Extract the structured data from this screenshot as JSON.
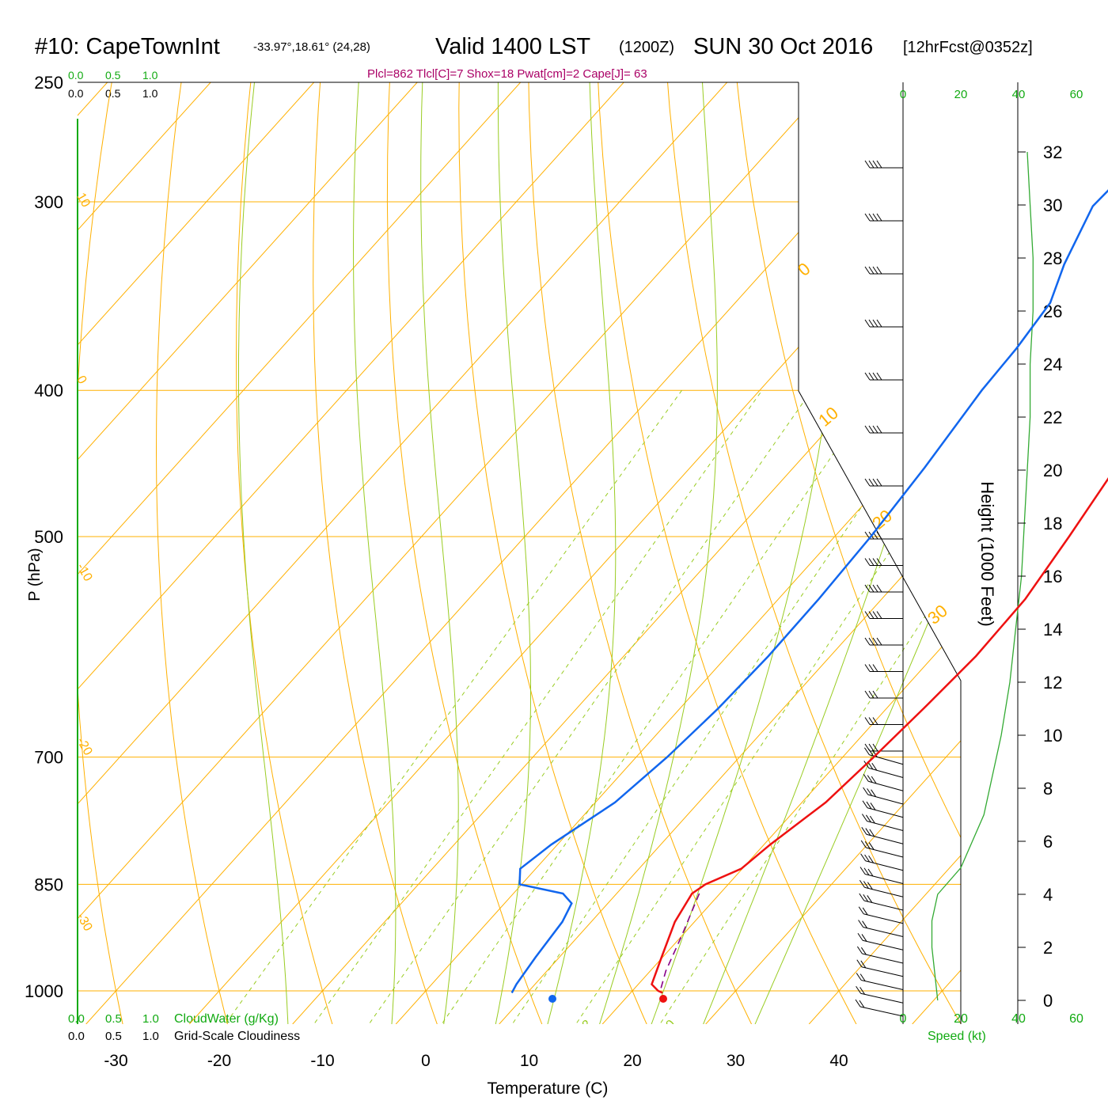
{
  "header": {
    "station": "#10: CapeTownInt",
    "coords": "-33.97°,18.61° (24,28)",
    "valid": "Valid 1400 LST",
    "zulu": "(1200Z)",
    "date": "SUN 30 Oct 2016",
    "forecast": "[12hrFcst@0352z]",
    "indices": "Plcl=862 Tlcl[C]=7 Shox=18 Pwat[cm]=2 Cape[J]= 63"
  },
  "colors": {
    "temperature": "#ee1111",
    "dewpoint": "#1166ee",
    "parcel": "#880088",
    "isobar_isotherm": "#ffb000",
    "adiabat": "#99cc22",
    "green_text": "#11aa11",
    "windspeed": "#33aa33",
    "indices_text": "#aa0066"
  },
  "labels": {
    "cloud_scale_top_green": [
      "0.0",
      "0.5",
      "1.0"
    ],
    "cloud_scale_top_black": [
      "0.0",
      "0.5",
      "1.0"
    ],
    "cloud_scale_bottom_green": [
      "0.0",
      "0.5",
      "1.0"
    ],
    "cloud_scale_bottom_black": [
      "0.0",
      "0.5",
      "1.0"
    ],
    "cloudwater": "CloudWater (g/Kg)",
    "cloudiness": "Grid-Scale Cloudiness",
    "speed_label": "Speed (kt)",
    "speed_ticks": [
      "0",
      "20",
      "40",
      "60"
    ]
  },
  "chart_data": {
    "type": "line",
    "title": "Skew-T sounding",
    "xlabel": "Temperature (C)",
    "ylabel": "P (hPa)",
    "y2label": "Height (1000 Feet)",
    "x_ticks": [
      -30,
      -20,
      -10,
      0,
      10,
      20,
      30,
      40
    ],
    "p_ticks": [
      250,
      300,
      400,
      500,
      700,
      850,
      1000
    ],
    "height_ticks": [
      0,
      2,
      4,
      6,
      8,
      10,
      12,
      14,
      16,
      18,
      20,
      22,
      24,
      26,
      28,
      30,
      32
    ],
    "isotherm_labels": [
      "10",
      "0",
      "-10",
      "-20",
      "-30"
    ],
    "isotherm_labels_right": [
      "0",
      "10",
      "20",
      "30"
    ],
    "mixing_ratio_labels": [
      "1",
      "2",
      "3",
      "5",
      "8",
      "12",
      "20"
    ],
    "series": [
      {
        "name": "Temperature",
        "points": [
          [
            2.2,
            265
          ],
          [
            6.5,
            300
          ],
          [
            13.2,
            350
          ],
          [
            18.4,
            400
          ],
          [
            21.2,
            450
          ],
          [
            22.7,
            500
          ],
          [
            23.9,
            550
          ],
          [
            24.1,
            600
          ],
          [
            23.6,
            650
          ],
          [
            23.0,
            700
          ],
          [
            22.3,
            750
          ],
          [
            20.6,
            800
          ],
          [
            19.9,
            830
          ],
          [
            17.8,
            850
          ],
          [
            17.3,
            862
          ],
          [
            18.1,
            900
          ],
          [
            19.9,
            950
          ],
          [
            21.3,
            990
          ],
          [
            22.5,
            1000
          ],
          [
            23.1,
            1003
          ]
        ]
      },
      {
        "name": "Dewpoint",
        "points": [
          [
            -4.3,
            265
          ],
          [
            -3.5,
            285
          ],
          [
            -3.8,
            302
          ],
          [
            -1.5,
            330
          ],
          [
            0.5,
            350
          ],
          [
            1.2,
            375
          ],
          [
            1.5,
            400
          ],
          [
            2.7,
            450
          ],
          [
            3.5,
            500
          ],
          [
            3.9,
            550
          ],
          [
            4.0,
            600
          ],
          [
            3.7,
            650
          ],
          [
            3.0,
            700
          ],
          [
            1.9,
            750
          ],
          [
            -0.6,
            800
          ],
          [
            -1.5,
            830
          ],
          [
            -0.2,
            850
          ],
          [
            4.8,
            862
          ],
          [
            6.5,
            875
          ],
          [
            7.2,
            900
          ],
          [
            7.7,
            950
          ],
          [
            8.2,
            990
          ],
          [
            8.5,
            1003
          ]
        ]
      },
      {
        "name": "Parcel",
        "points": [
          [
            18.0,
            862
          ],
          [
            20.0,
            920
          ],
          [
            21.5,
            970
          ],
          [
            22.7,
            1000
          ]
        ]
      }
    ],
    "surface_temperature": 23,
    "surface_dewpoint": 12.2,
    "wind_speed_kt": [
      [
        0,
        12
      ],
      [
        1,
        11
      ],
      [
        2,
        10
      ],
      [
        3,
        10
      ],
      [
        4,
        12
      ],
      [
        5,
        20
      ],
      [
        6,
        24
      ],
      [
        7,
        28
      ],
      [
        8,
        30
      ],
      [
        9,
        32
      ],
      [
        10,
        34
      ],
      [
        12,
        37
      ],
      [
        14,
        39
      ],
      [
        16,
        41
      ],
      [
        18,
        42
      ],
      [
        20,
        43
      ],
      [
        22,
        44
      ],
      [
        24,
        44
      ],
      [
        26,
        45
      ],
      [
        28,
        45
      ],
      [
        30,
        44
      ],
      [
        32,
        43
      ]
    ],
    "wind_barbs_kft": [
      0,
      0.5,
      1,
      1.5,
      2,
      2.5,
      3,
      3.5,
      4,
      4.5,
      5,
      5.5,
      6,
      6.5,
      7,
      7.5,
      8,
      8.5,
      9,
      9.5,
      10,
      11,
      12,
      13,
      14,
      15,
      16,
      17,
      18,
      20,
      22,
      24,
      26,
      28,
      30,
      32
    ]
  }
}
